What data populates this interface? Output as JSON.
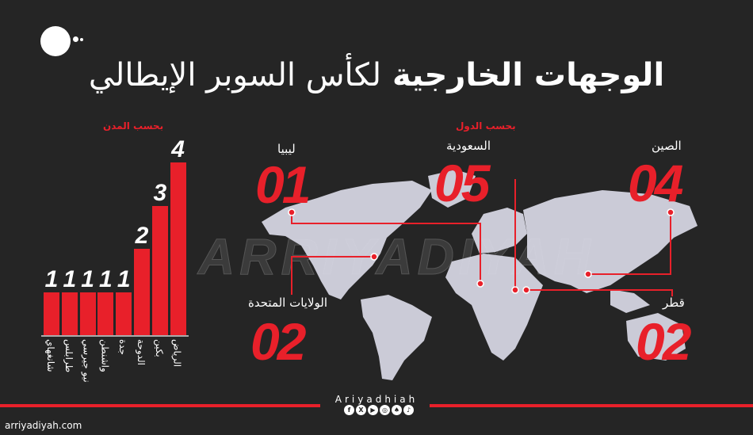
{
  "title": {
    "bold": "الوجهات الخارجية",
    "light": "لكأس السوبر الإيطالي"
  },
  "watermark": "ARRIYADIYAH",
  "chart_data": {
    "type": "bar",
    "title": "بحسب المدن",
    "categories": [
      "شانغهاي",
      "طرابلس",
      "نيو جيرسي",
      "واشنطن",
      "جدة",
      "الدوحة",
      "بكين",
      "الرياض"
    ],
    "values": [
      1,
      1,
      1,
      1,
      1,
      2,
      3,
      4
    ],
    "values_labels": [
      "1",
      "1",
      "1",
      "1",
      "1",
      "2",
      "3",
      "4"
    ],
    "ylim": [
      0,
      4
    ],
    "bar_color": "#e8202a",
    "grid": false
  },
  "countries": {
    "title": "بحسب الدول",
    "items": [
      {
        "name": "ليبيا",
        "count": "01"
      },
      {
        "name": "السعودية",
        "count": "05"
      },
      {
        "name": "الصين",
        "count": "04"
      },
      {
        "name": "الولايات المتحدة",
        "count": "02"
      },
      {
        "name": "قطر",
        "count": "02"
      }
    ]
  },
  "brand": "Ariyadhiah",
  "socials": [
    "facebook-icon",
    "x-icon",
    "youtube-icon",
    "instagram-icon",
    "snapchat-icon",
    "tiktok-icon"
  ],
  "url": "arriyadiyah.com",
  "colors": {
    "accent": "#e8202a",
    "background": "#252525",
    "map": "#d9d9e6"
  }
}
